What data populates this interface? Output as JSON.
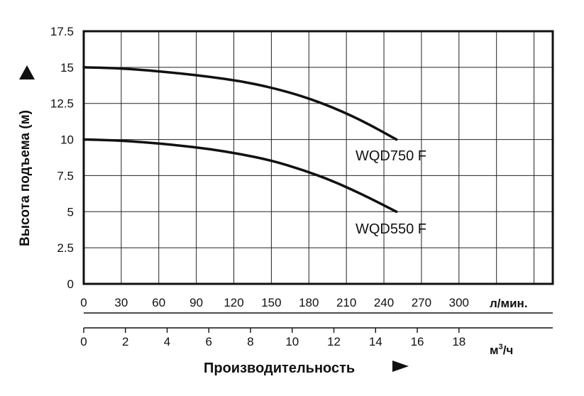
{
  "chart_data": {
    "type": "line",
    "ylabel": "Высота подъема (м)",
    "xlabel": "Производительность",
    "x_unit_primary": "л/мин.",
    "x_unit_secondary": "м",
    "x_unit_secondary_sup": "3",
    "x_unit_secondary_suffix": "/ч",
    "ylim": [
      0,
      17.5
    ],
    "xlim": [
      0,
      375
    ],
    "y_ticks": [
      "0",
      "2.5",
      "5",
      "7.5",
      "10",
      "12.5",
      "15",
      "17.5"
    ],
    "x_ticks_primary": [
      "0",
      "30",
      "60",
      "90",
      "120",
      "150",
      "180",
      "210",
      "240",
      "270",
      "300"
    ],
    "x_ticks_secondary": [
      "0",
      "2",
      "4",
      "6",
      "8",
      "10",
      "12",
      "14",
      "16",
      "18"
    ],
    "grid": true,
    "series": [
      {
        "name": "WQD750 F",
        "x": [
          0,
          25,
          50,
          75,
          100,
          125,
          150,
          175,
          200,
          225,
          250
        ],
        "y": [
          15,
          14.95,
          14.8,
          14.6,
          14.35,
          14.05,
          13.6,
          13.0,
          12.2,
          11.2,
          10.0
        ]
      },
      {
        "name": "WQD550 F",
        "x": [
          0,
          25,
          50,
          75,
          100,
          125,
          150,
          175,
          200,
          225,
          250
        ],
        "y": [
          10,
          9.95,
          9.8,
          9.6,
          9.35,
          9.0,
          8.55,
          7.9,
          7.1,
          6.1,
          5.0
        ]
      }
    ]
  }
}
